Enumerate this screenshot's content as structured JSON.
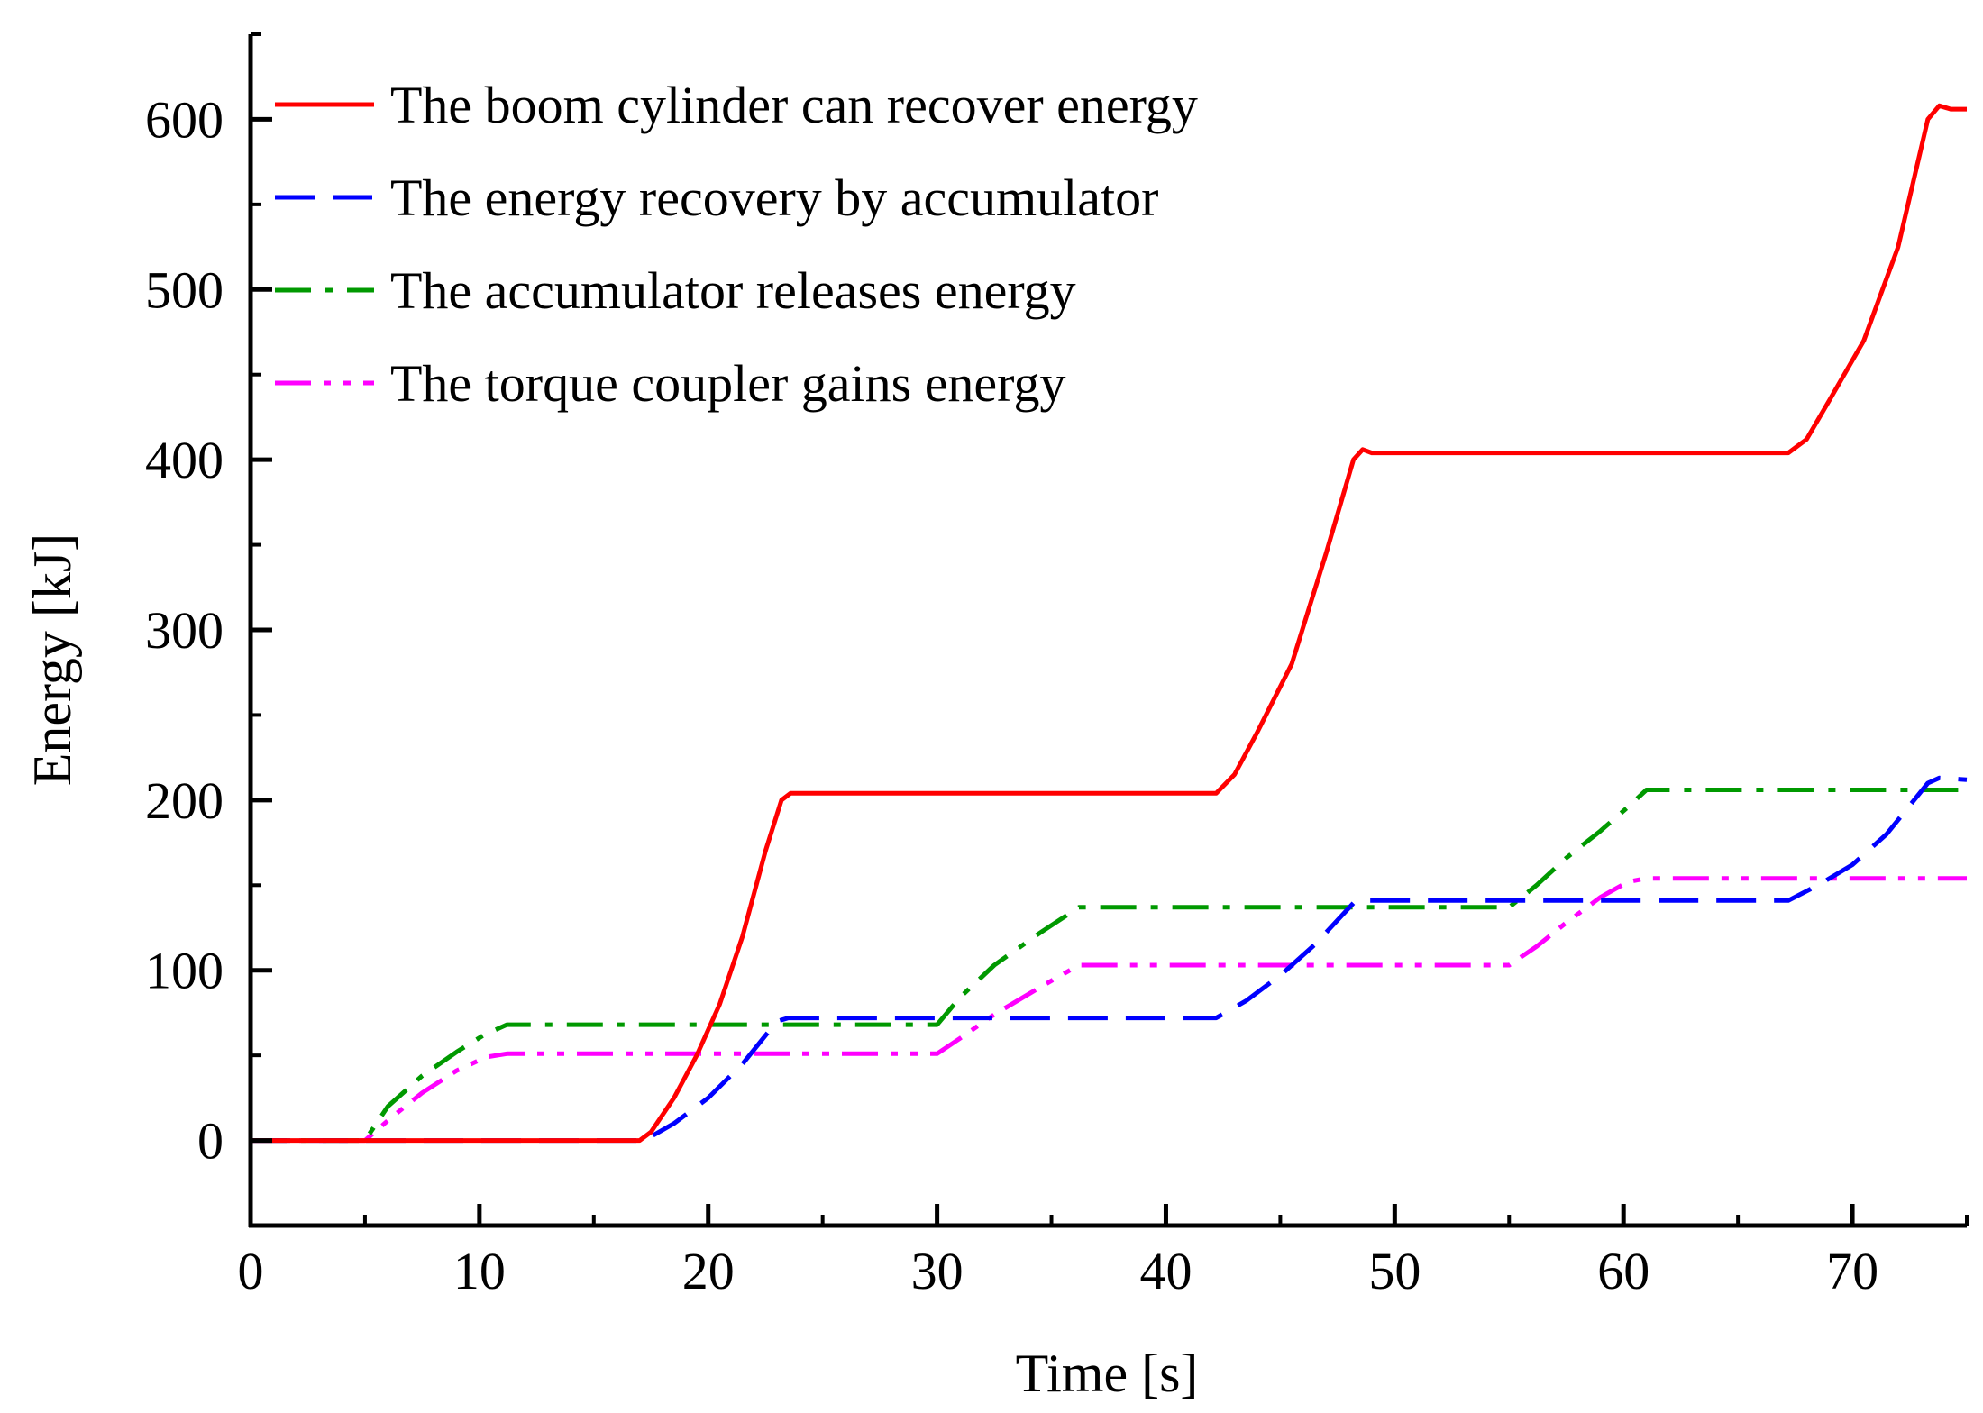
{
  "chart_data": {
    "type": "line",
    "title": "",
    "xlabel": "Time [s]",
    "ylabel": "Energy [kJ]",
    "xlim": [
      0,
      75
    ],
    "ylim": [
      -50,
      650
    ],
    "xticks": [
      0,
      10,
      20,
      30,
      40,
      50,
      60,
      70
    ],
    "yticks": [
      0,
      100,
      200,
      300,
      400,
      500,
      600
    ],
    "x_minor_step": 5,
    "y_minor_step": 50,
    "legend_position": "top-left",
    "series": [
      {
        "name": "The boom cylinder can recover energy",
        "color": "#ff0000",
        "style": "solid",
        "points": [
          [
            0,
            0
          ],
          [
            17,
            0
          ],
          [
            17.5,
            5
          ],
          [
            18.5,
            25
          ],
          [
            19.5,
            50
          ],
          [
            20.5,
            80
          ],
          [
            21.5,
            120
          ],
          [
            22.5,
            170
          ],
          [
            23.2,
            200
          ],
          [
            23.6,
            204
          ],
          [
            42.2,
            204
          ],
          [
            43,
            215
          ],
          [
            44,
            240
          ],
          [
            45.5,
            280
          ],
          [
            47,
            345
          ],
          [
            48.2,
            400
          ],
          [
            48.6,
            406
          ],
          [
            49,
            404
          ],
          [
            67.2,
            404
          ],
          [
            68,
            412
          ],
          [
            69,
            435
          ],
          [
            70.5,
            470
          ],
          [
            72,
            525
          ],
          [
            73.3,
            600
          ],
          [
            73.8,
            608
          ],
          [
            74.3,
            606
          ],
          [
            75,
            606
          ]
        ]
      },
      {
        "name": "The energy recovery by accumulator",
        "color": "#0000ff",
        "style": "dashed",
        "points": [
          [
            0,
            0
          ],
          [
            17.2,
            0
          ],
          [
            18.5,
            10
          ],
          [
            20,
            25
          ],
          [
            21.5,
            45
          ],
          [
            23,
            70
          ],
          [
            23.5,
            72
          ],
          [
            42.2,
            72
          ],
          [
            43.5,
            82
          ],
          [
            45,
            97
          ],
          [
            46.5,
            115
          ],
          [
            48.3,
            141
          ],
          [
            67.2,
            141
          ],
          [
            68.5,
            150
          ],
          [
            70,
            162
          ],
          [
            71.5,
            180
          ],
          [
            73.3,
            210
          ],
          [
            73.8,
            213
          ],
          [
            75,
            212
          ]
        ]
      },
      {
        "name": "The accumulator releases energy",
        "color": "#009900",
        "style": "dashdot",
        "points": [
          [
            0,
            0
          ],
          [
            5,
            0
          ],
          [
            6,
            20
          ],
          [
            7.5,
            38
          ],
          [
            9,
            52
          ],
          [
            10.2,
            62
          ],
          [
            11.2,
            68
          ],
          [
            30,
            68
          ],
          [
            31,
            84
          ],
          [
            32.5,
            103
          ],
          [
            34.5,
            122
          ],
          [
            36.2,
            137
          ],
          [
            55,
            137
          ],
          [
            56.2,
            150
          ],
          [
            57.5,
            166
          ],
          [
            59,
            182
          ],
          [
            60.2,
            196
          ],
          [
            61,
            206
          ],
          [
            75,
            206
          ]
        ]
      },
      {
        "name": "The torque coupler gains energy",
        "color": "#ff00ff",
        "style": "dashdotdot",
        "points": [
          [
            0,
            0
          ],
          [
            5,
            0
          ],
          [
            6.2,
            14
          ],
          [
            7.5,
            28
          ],
          [
            9,
            41
          ],
          [
            10.3,
            49
          ],
          [
            11.2,
            51
          ],
          [
            30,
            51
          ],
          [
            31,
            60
          ],
          [
            32.5,
            74
          ],
          [
            34.5,
            90
          ],
          [
            36.2,
            103
          ],
          [
            55,
            103
          ],
          [
            56.2,
            114
          ],
          [
            57.5,
            128
          ],
          [
            59,
            143
          ],
          [
            60.2,
            152
          ],
          [
            61,
            154
          ],
          [
            75,
            154
          ]
        ]
      }
    ]
  }
}
